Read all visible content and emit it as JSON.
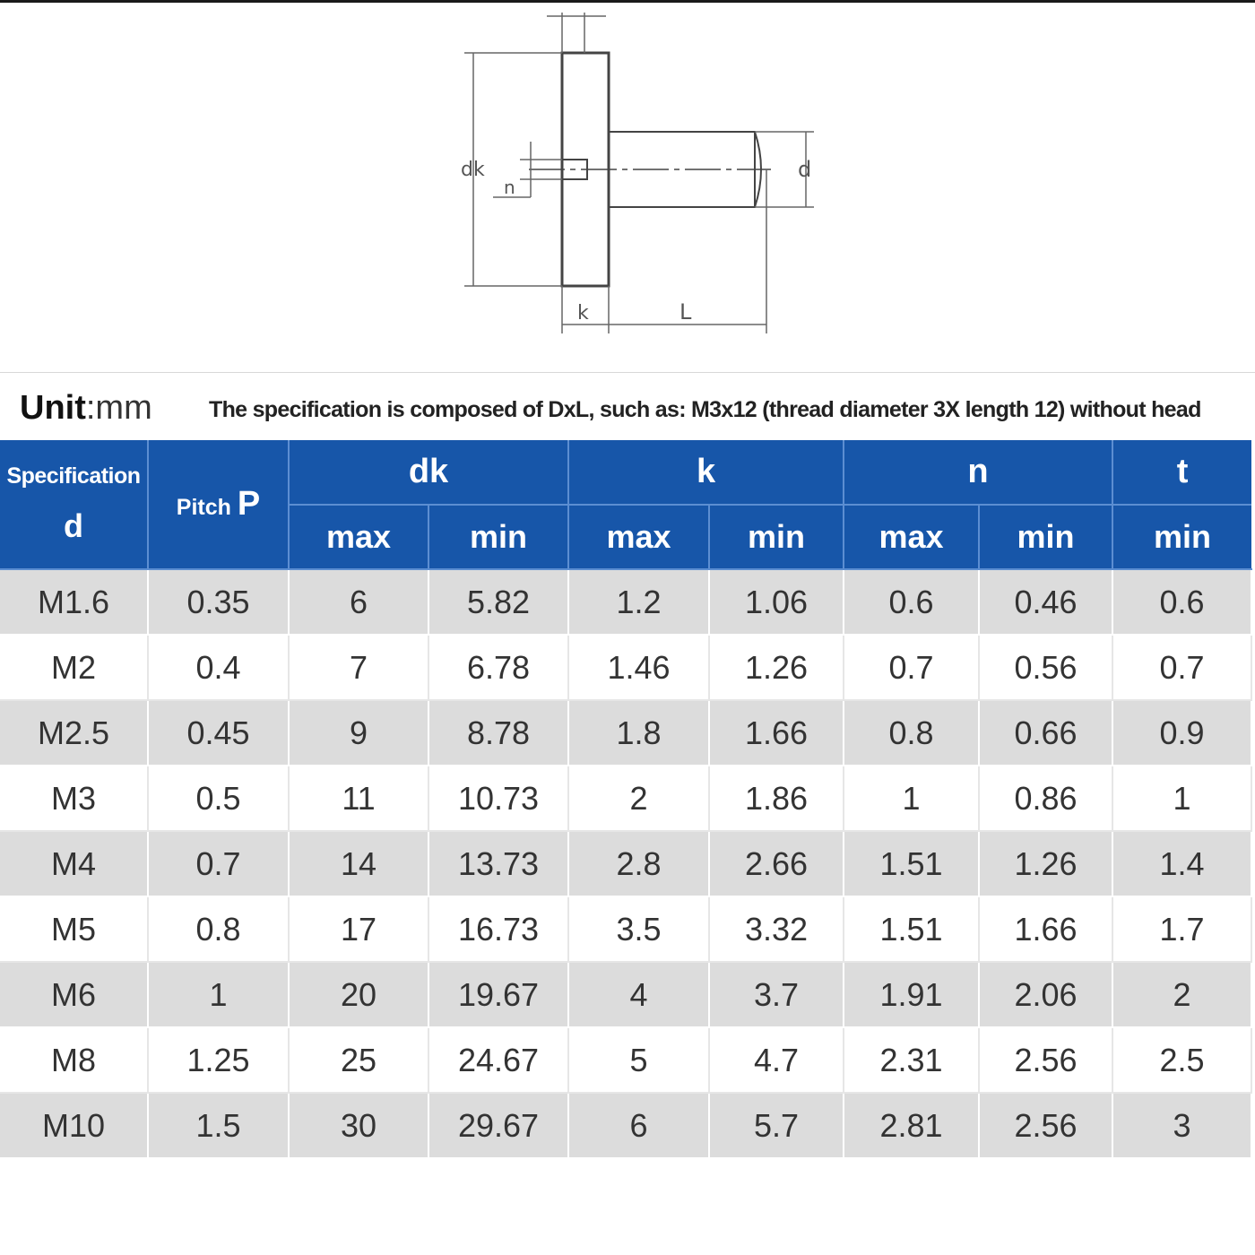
{
  "drawing": {
    "labels": {
      "dk": "dk",
      "n": "n",
      "d": "d",
      "k": "k",
      "L": "L"
    }
  },
  "info": {
    "unit_label": "Unit",
    "unit_value": ":mm",
    "note": "The specification is composed of DxL, such as: M3x12 (thread diameter 3X length 12) without head"
  },
  "table": {
    "headers": {
      "spec_line1": "Specification",
      "spec_line2": "d",
      "pitch_text": "Pitch",
      "pitch_symbol": "P",
      "groups": [
        "dk",
        "k",
        "n",
        "t"
      ],
      "sub": [
        "max",
        "min",
        "max",
        "min",
        "max",
        "min",
        "min"
      ]
    },
    "rows": [
      [
        "M1.6",
        "0.35",
        "6",
        "5.82",
        "1.2",
        "1.06",
        "0.6",
        "0.46",
        "0.6"
      ],
      [
        "M2",
        "0.4",
        "7",
        "6.78",
        "1.46",
        "1.26",
        "0.7",
        "0.56",
        "0.7"
      ],
      [
        "M2.5",
        "0.45",
        "9",
        "8.78",
        "1.8",
        "1.66",
        "0.8",
        "0.66",
        "0.9"
      ],
      [
        "M3",
        "0.5",
        "11",
        "10.73",
        "2",
        "1.86",
        "1",
        "0.86",
        "1"
      ],
      [
        "M4",
        "0.7",
        "14",
        "13.73",
        "2.8",
        "2.66",
        "1.51",
        "1.26",
        "1.4"
      ],
      [
        "M5",
        "0.8",
        "17",
        "16.73",
        "3.5",
        "3.32",
        "1.51",
        "1.66",
        "1.7"
      ],
      [
        "M6",
        "1",
        "20",
        "19.67",
        "4",
        "3.7",
        "1.91",
        "2.06",
        "2"
      ],
      [
        "M8",
        "1.25",
        "25",
        "24.67",
        "5",
        "4.7",
        "2.31",
        "2.56",
        "2.5"
      ],
      [
        "M10",
        "1.5",
        "30",
        "29.67",
        "6",
        "5.7",
        "2.81",
        "2.56",
        "3"
      ]
    ]
  },
  "colors": {
    "header_blue": "#1756a9",
    "odd_row": "#dcdcdc",
    "even_row": "#ffffff"
  }
}
